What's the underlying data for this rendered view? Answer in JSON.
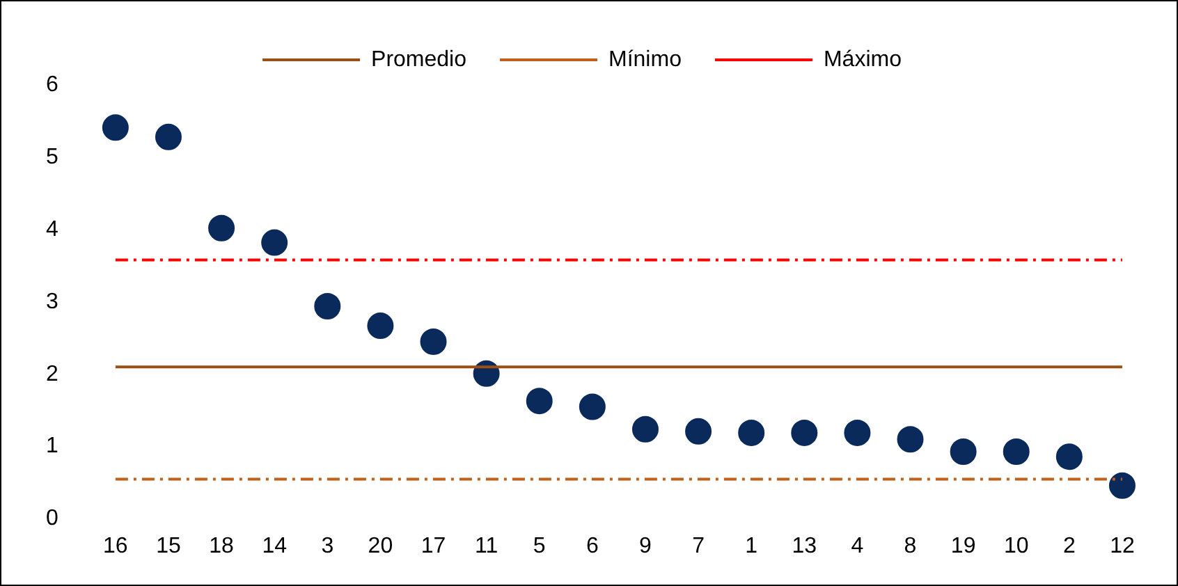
{
  "chart_data": {
    "type": "scatter",
    "categories": [
      "16",
      "15",
      "18",
      "14",
      "3",
      "20",
      "17",
      "11",
      "5",
      "6",
      "9",
      "7",
      "1",
      "13",
      "4",
      "8",
      "19",
      "10",
      "2",
      "12"
    ],
    "series": [
      {
        "color": "#0b2a5c",
        "marker": "circle",
        "values": [
          5.41,
          5.28,
          4.02,
          3.82,
          2.94,
          2.67,
          2.45,
          2.01,
          1.63,
          1.55,
          1.24,
          1.21,
          1.19,
          1.19,
          1.19,
          1.1,
          0.93,
          0.93,
          0.86,
          0.46
        ]
      },
      {
        "type": "line",
        "name": "Promedio",
        "color": "#9c4f12",
        "line_style": "solid",
        "values": [
          2.1,
          2.1,
          2.1,
          2.1,
          2.1,
          2.1,
          2.1,
          2.1,
          2.1,
          2.1,
          2.1,
          2.1,
          2.1,
          2.1,
          2.1,
          2.1,
          2.1,
          2.1,
          2.1,
          2.1
        ]
      },
      {
        "type": "line",
        "name": "Mínimo",
        "color": "#c0601a",
        "line_style": "dashed",
        "values": [
          0.55,
          0.55,
          0.55,
          0.55,
          0.55,
          0.55,
          0.55,
          0.55,
          0.55,
          0.55,
          0.55,
          0.55,
          0.55,
          0.55,
          0.55,
          0.55,
          0.55,
          0.55,
          0.55,
          0.55
        ]
      },
      {
        "type": "line",
        "name": "Máximo",
        "color": "#ff0000",
        "line_style": "dashed",
        "values": [
          3.58,
          3.58,
          3.58,
          3.58,
          3.58,
          3.58,
          3.58,
          3.58,
          3.58,
          3.58,
          3.58,
          3.58,
          3.58,
          3.58,
          3.58,
          3.58,
          3.58,
          3.58,
          3.58,
          3.58
        ]
      }
    ],
    "ylim": [
      0,
      6
    ],
    "yticks": [
      0,
      1,
      2,
      3,
      4,
      5,
      6
    ],
    "grid": false,
    "legend": "top",
    "marker": "none"
  }
}
